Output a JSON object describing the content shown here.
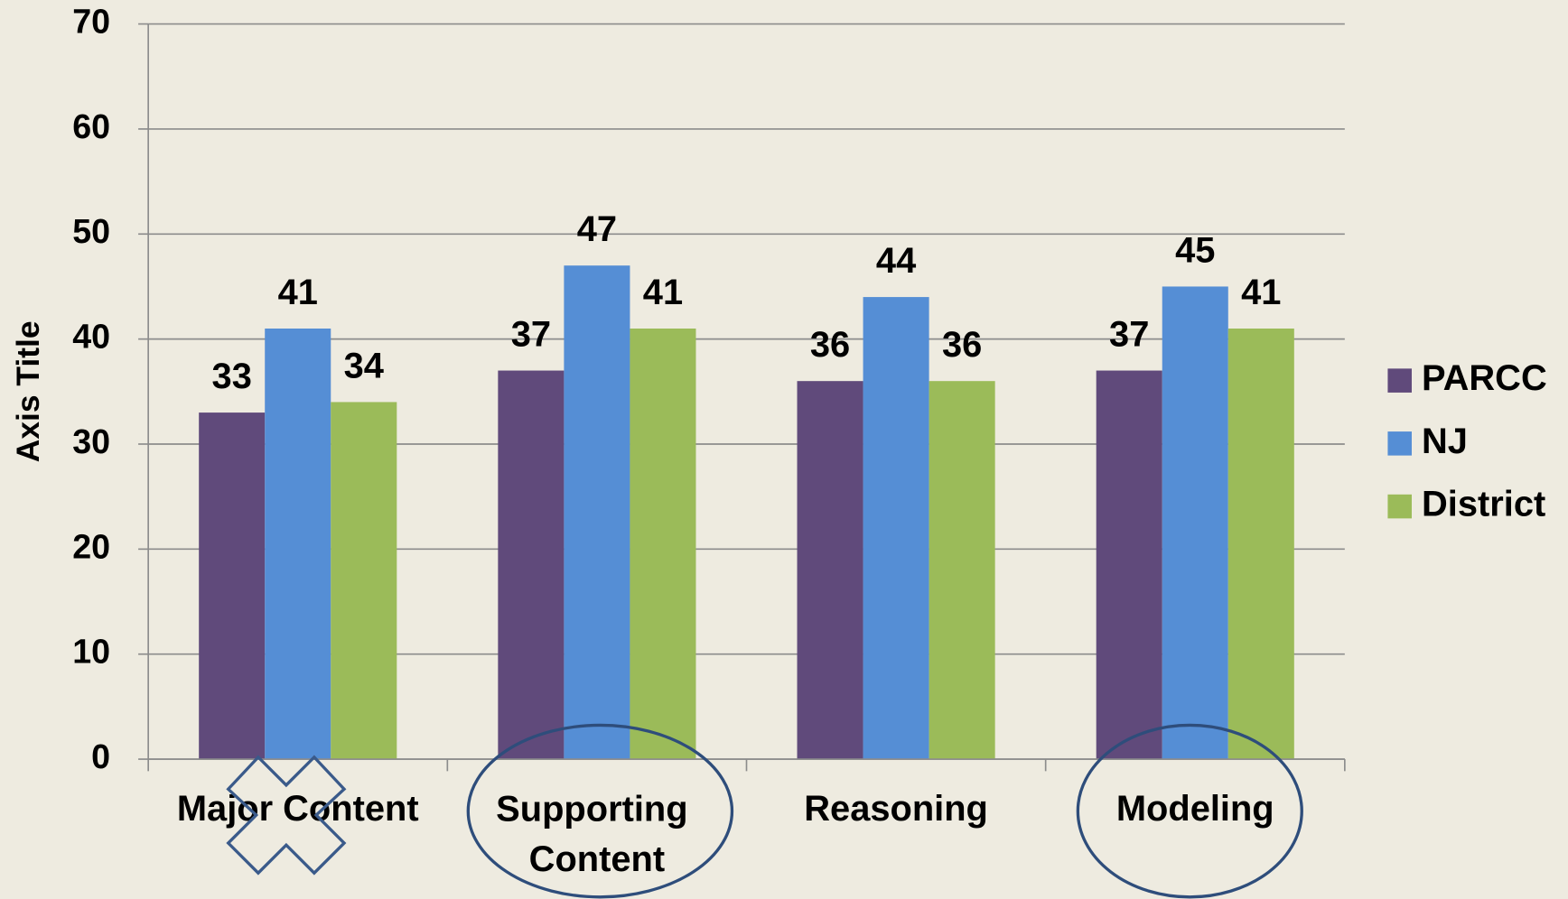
{
  "chart_data": {
    "type": "bar",
    "y_axis_label": "Axis Title",
    "categories": [
      "Major Content",
      "Supporting Content",
      "Reasoning",
      "Modeling"
    ],
    "series": [
      {
        "name": "PARCC",
        "color": "#604a7b",
        "values": [
          33,
          37,
          36,
          37
        ]
      },
      {
        "name": "NJ",
        "color": "#558ed5",
        "values": [
          41,
          47,
          44,
          45
        ]
      },
      {
        "name": "District",
        "color": "#9bbb59",
        "values": [
          34,
          41,
          36,
          41
        ]
      }
    ],
    "ylim": [
      0,
      70
    ],
    "yticks": [
      0,
      10,
      20,
      30,
      40,
      50,
      60,
      70
    ],
    "grid": true,
    "legend": "right"
  }
}
